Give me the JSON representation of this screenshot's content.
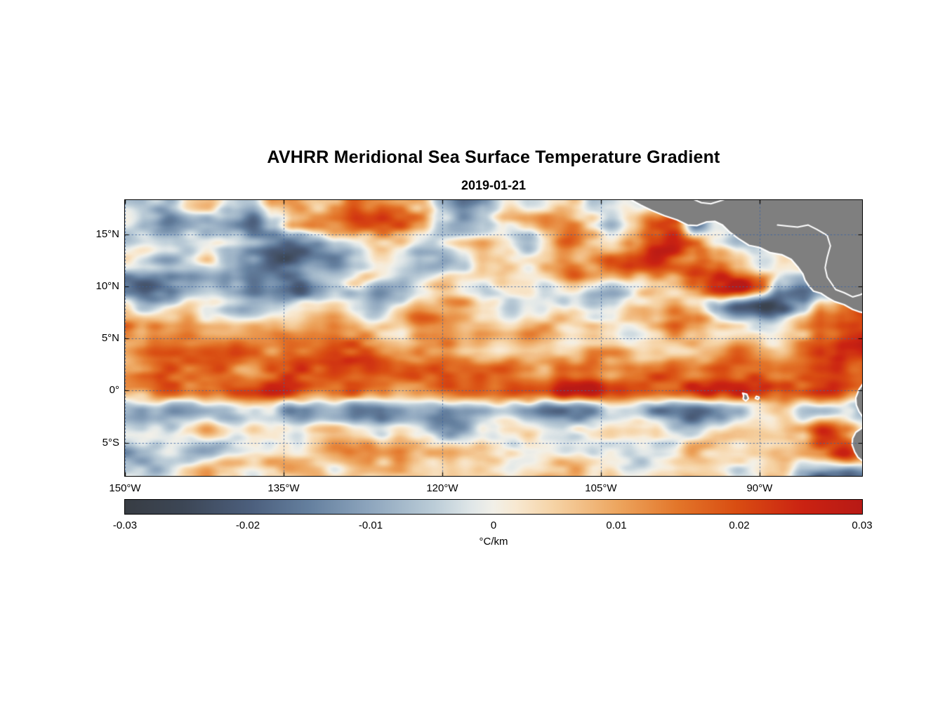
{
  "chart_data": {
    "type": "heatmap",
    "title": "AVHRR Meridional Sea Surface Temperature Gradient",
    "date": "2019-01-21",
    "x_axis": {
      "ticks": [
        "150°W",
        "135°W",
        "120°W",
        "105°W",
        "90°W"
      ],
      "tick_lons": [
        150,
        135,
        120,
        105,
        90
      ],
      "lon_range_west": [
        150,
        80.3
      ]
    },
    "y_axis": {
      "ticks": [
        "15°N",
        "10°N",
        "5°N",
        "0°",
        "5°S"
      ],
      "tick_lats": [
        15,
        10,
        5,
        0,
        -5
      ],
      "lat_range": [
        18.3,
        -8.2
      ]
    },
    "colorbar": {
      "units": "°C/km",
      "ticks": [
        "-0.03",
        "-0.02",
        "-0.01",
        "0",
        "0.01",
        "0.02",
        "0.03"
      ],
      "min": -0.03,
      "max": 0.03,
      "stops": [
        {
          "pos": 0.0,
          "color": "#383d44"
        },
        {
          "pos": 0.08,
          "color": "#3d4756"
        },
        {
          "pos": 0.17,
          "color": "#4c5f7d"
        },
        {
          "pos": 0.25,
          "color": "#65809f"
        },
        {
          "pos": 0.33,
          "color": "#8da5bd"
        },
        {
          "pos": 0.42,
          "color": "#bccdd8"
        },
        {
          "pos": 0.47,
          "color": "#e0e7e8"
        },
        {
          "pos": 0.5,
          "color": "#f2f0e8"
        },
        {
          "pos": 0.53,
          "color": "#f8e9d2"
        },
        {
          "pos": 0.58,
          "color": "#f6d4a7"
        },
        {
          "pos": 0.67,
          "color": "#eda55e"
        },
        {
          "pos": 0.75,
          "color": "#e3762a"
        },
        {
          "pos": 0.83,
          "color": "#d94d12"
        },
        {
          "pos": 0.92,
          "color": "#cb2312"
        },
        {
          "pos": 1.0,
          "color": "#b81a16"
        }
      ]
    },
    "grid": {
      "units": "degC_per_km",
      "scale": 0.001,
      "lon_start_west": 150,
      "lon_step": -2,
      "cols": 36,
      "lat_start": 18,
      "lat_step": -2,
      "rows": 14,
      "values": [
        [
          2,
          0,
          -4,
          2,
          4,
          -6,
          -10,
          4,
          8,
          4,
          10,
          15,
          12,
          10,
          8,
          -8,
          -15,
          -6,
          4,
          2,
          6,
          2,
          -4,
          2,
          0,
          0,
          0,
          0,
          0,
          0,
          0,
          0,
          0,
          0,
          0,
          0
        ],
        [
          -2,
          -6,
          -12,
          -10,
          -14,
          -16,
          -20,
          -12,
          4,
          10,
          12,
          16,
          14,
          12,
          6,
          -10,
          -18,
          -14,
          -2,
          4,
          8,
          10,
          4,
          -2,
          4,
          12,
          20,
          -15,
          0,
          0,
          0,
          0,
          0,
          0,
          0,
          0
        ],
        [
          2,
          4,
          0,
          -6,
          -4,
          -8,
          -12,
          -16,
          -18,
          -16,
          -10,
          -4,
          4,
          2,
          -4,
          -2,
          4,
          6,
          2,
          -4,
          8,
          12,
          6,
          2,
          10,
          20,
          26,
          22,
          8,
          0,
          0,
          0,
          0,
          0,
          0,
          0
        ],
        [
          0,
          -4,
          -8,
          -4,
          2,
          -6,
          -14,
          -18,
          -14,
          -8,
          -12,
          -8,
          -2,
          4,
          -6,
          -10,
          -4,
          2,
          6,
          4,
          10,
          14,
          8,
          12,
          18,
          22,
          18,
          24,
          16,
          6,
          -6,
          0,
          0,
          0,
          0,
          0
        ],
        [
          -16,
          -20,
          -14,
          -8,
          -4,
          -10,
          -16,
          -12,
          -16,
          -10,
          -4,
          2,
          -8,
          -4,
          2,
          4,
          -2,
          -6,
          2,
          4,
          2,
          6,
          2,
          -4,
          2,
          8,
          4,
          10,
          22,
          28,
          20,
          -10,
          -18,
          -8,
          4,
          8
        ],
        [
          -4,
          -8,
          -2,
          4,
          2,
          -4,
          -8,
          -4,
          2,
          4,
          6,
          2,
          -4,
          2,
          6,
          4,
          8,
          4,
          -2,
          2,
          4,
          -4,
          -8,
          -2,
          4,
          2,
          6,
          2,
          -12,
          -26,
          -28,
          -20,
          -8,
          6,
          16,
          22
        ],
        [
          16,
          10,
          4,
          8,
          4,
          6,
          10,
          6,
          2,
          6,
          4,
          8,
          4,
          6,
          12,
          8,
          4,
          8,
          4,
          6,
          8,
          4,
          6,
          4,
          2,
          6,
          14,
          10,
          4,
          6,
          2,
          4,
          8,
          12,
          20,
          24
        ],
        [
          18,
          16,
          12,
          14,
          16,
          14,
          10,
          8,
          12,
          10,
          14,
          16,
          12,
          10,
          16,
          12,
          8,
          6,
          4,
          8,
          6,
          4,
          8,
          6,
          4,
          8,
          6,
          10,
          8,
          12,
          10,
          8,
          12,
          16,
          26,
          28
        ],
        [
          14,
          18,
          22,
          16,
          20,
          18,
          14,
          18,
          22,
          20,
          24,
          22,
          26,
          22,
          18,
          22,
          18,
          16,
          20,
          18,
          16,
          14,
          18,
          16,
          14,
          12,
          16,
          14,
          18,
          16,
          20,
          18,
          16,
          20,
          24,
          20
        ],
        [
          16,
          14,
          18,
          16,
          12,
          16,
          14,
          18,
          16,
          14,
          18,
          22,
          18,
          16,
          20,
          24,
          26,
          22,
          24,
          22,
          20,
          24,
          26,
          24,
          20,
          22,
          18,
          24,
          28,
          30,
          26,
          18,
          14,
          18,
          16,
          12
        ],
        [
          -4,
          -6,
          -10,
          -12,
          -8,
          -12,
          -8,
          -4,
          -10,
          -14,
          -10,
          -14,
          -12,
          -8,
          -12,
          -16,
          -12,
          -8,
          -4,
          -8,
          -12,
          -10,
          -14,
          -10,
          -6,
          -10,
          -16,
          -20,
          -16,
          -10,
          -6,
          -2,
          -6,
          -4,
          2,
          -4
        ],
        [
          4,
          2,
          -2,
          4,
          6,
          2,
          4,
          0,
          -4,
          2,
          4,
          2,
          -2,
          4,
          2,
          -4,
          -8,
          -4,
          2,
          4,
          2,
          4,
          6,
          2,
          4,
          2,
          -4,
          -2,
          4,
          6,
          4,
          2,
          6,
          24,
          16,
          8
        ],
        [
          -12,
          -10,
          -6,
          -8,
          -4,
          2,
          4,
          6,
          2,
          4,
          8,
          4,
          6,
          8,
          4,
          6,
          8,
          10,
          6,
          4,
          6,
          2,
          4,
          6,
          2,
          4,
          2,
          4,
          2,
          6,
          4,
          8,
          6,
          12,
          22,
          10
        ],
        [
          -6,
          -8,
          -4,
          2,
          4,
          2,
          -4,
          2,
          4,
          6,
          2,
          4,
          2,
          6,
          4,
          2,
          6,
          4,
          2,
          4,
          6,
          4,
          2,
          4,
          2,
          4,
          6,
          2,
          4,
          2,
          4,
          2,
          -10,
          -16,
          -18,
          -14
        ]
      ]
    },
    "land": {
      "fill": "#7f7f7f",
      "stroke": "#ffffff",
      "polygons": [
        {
          "name": "mexico-central-america",
          "points": [
            [
              102.3,
              18.4
            ],
            [
              101.2,
              17.8
            ],
            [
              100.2,
              17.3
            ],
            [
              99.0,
              16.8
            ],
            [
              97.8,
              16.4
            ],
            [
              96.8,
              15.9
            ],
            [
              95.9,
              15.85
            ],
            [
              95.0,
              16.2
            ],
            [
              94.2,
              16.25
            ],
            [
              93.5,
              15.9
            ],
            [
              92.8,
              15.2
            ],
            [
              92.0,
              14.6
            ],
            [
              91.0,
              13.95
            ],
            [
              90.0,
              13.75
            ],
            [
              89.0,
              13.25
            ],
            [
              87.9,
              13.05
            ],
            [
              87.0,
              12.6
            ],
            [
              86.4,
              11.9
            ],
            [
              85.9,
              11.2
            ],
            [
              85.7,
              10.6
            ],
            [
              85.3,
              10.0
            ],
            [
              84.9,
              9.55
            ],
            [
              84.2,
              9.35
            ],
            [
              83.6,
              8.95
            ],
            [
              82.9,
              8.55
            ],
            [
              82.0,
              8.25
            ],
            [
              81.2,
              7.8
            ],
            [
              80.5,
              7.55
            ],
            [
              79.5,
              7.3
            ],
            [
              79.5,
              18.4
            ]
          ]
        },
        {
          "name": "ecuador",
          "points": [
            [
              79.5,
              1.0
            ],
            [
              80.2,
              0.7
            ],
            [
              80.6,
              0.1
            ],
            [
              80.9,
              -0.7
            ],
            [
              80.85,
              -1.4
            ],
            [
              80.6,
              -2.0
            ],
            [
              80.2,
              -2.6
            ],
            [
              79.5,
              -3.0
            ]
          ]
        },
        {
          "name": "peru",
          "points": [
            [
              79.5,
              -3.5
            ],
            [
              80.3,
              -3.6
            ],
            [
              80.9,
              -4.0
            ],
            [
              81.2,
              -4.6
            ],
            [
              81.25,
              -5.2
            ],
            [
              81.0,
              -5.9
            ],
            [
              80.7,
              -6.4
            ],
            [
              80.1,
              -6.9
            ],
            [
              79.5,
              -7.3
            ],
            [
              79.5,
              -8.5
            ]
          ]
        },
        {
          "name": "galapagos-isabela",
          "points": [
            [
              91.6,
              -0.25
            ],
            [
              91.2,
              -0.35
            ],
            [
              91.05,
              -0.75
            ],
            [
              91.3,
              -1.0
            ],
            [
              91.55,
              -0.8
            ],
            [
              91.5,
              -0.5
            ]
          ]
        },
        {
          "name": "galapagos-east",
          "points": [
            [
              90.3,
              -0.55
            ],
            [
              90.0,
              -0.65
            ],
            [
              90.15,
              -0.85
            ],
            [
              90.4,
              -0.75
            ]
          ]
        }
      ],
      "coastlines": [
        {
          "name": "campeche-coast",
          "points": [
            [
              96.3,
              18.4
            ],
            [
              95.5,
              18.05
            ],
            [
              94.6,
              17.95
            ],
            [
              93.8,
              18.2
            ],
            [
              93.2,
              18.4
            ]
          ]
        },
        {
          "name": "caribbean-coast",
          "points": [
            [
              88.3,
              15.9
            ],
            [
              87.4,
              15.8
            ],
            [
              86.4,
              15.7
            ],
            [
              85.4,
              15.9
            ],
            [
              84.6,
              15.5
            ],
            [
              83.6,
              14.9
            ],
            [
              83.3,
              13.9
            ],
            [
              83.6,
              12.8
            ],
            [
              83.8,
              11.8
            ],
            [
              83.6,
              10.9
            ],
            [
              82.8,
              9.7
            ],
            [
              82.0,
              9.4
            ],
            [
              81.2,
              9.0
            ],
            [
              80.5,
              9.2
            ],
            [
              79.8,
              9.5
            ]
          ]
        }
      ]
    },
    "gridline_color": "#3c64a0"
  }
}
